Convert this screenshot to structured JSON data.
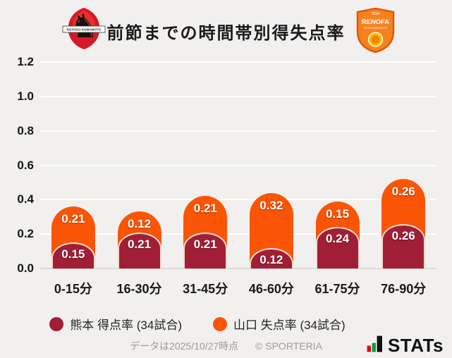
{
  "header": {
    "title": "前節までの時間帯別得失点率",
    "left_logo": {
      "club": "Roasso Kumamoto",
      "banner": "ROASSO KUMAMOTO"
    },
    "right_logo": {
      "club": "Renofa Yamaguchi",
      "year": "2014",
      "line1": "RENOFA",
      "line2": "YAMAGUCHI FC"
    }
  },
  "chart_data": {
    "type": "bar",
    "stacked": true,
    "categories": [
      "0-15分",
      "16-30分",
      "31-45分",
      "46-60分",
      "61-75分",
      "76-90分"
    ],
    "series": [
      {
        "name": "熊本 得点率 (34試合)",
        "color": "#a01f36",
        "values": [
          0.15,
          0.21,
          0.21,
          0.12,
          0.24,
          0.26
        ]
      },
      {
        "name": "山口 失点率 (34試合)",
        "color": "#fa5506",
        "values": [
          0.21,
          0.12,
          0.21,
          0.32,
          0.15,
          0.26
        ]
      }
    ],
    "title": "前節までの時間帯別得失点率",
    "xlabel": "",
    "ylabel": "",
    "ylim": [
      0,
      1.2
    ],
    "yticks": [
      0,
      0.2,
      0.4,
      0.6,
      0.8,
      1.0,
      1.2
    ],
    "grid": true,
    "legend_position": "bottom",
    "colors": {
      "background": "#f1f0ee",
      "gridline": "#ffffff",
      "axis_line": "#dbdad6",
      "value_text": "#ffffff"
    }
  },
  "footer": {
    "note": "データは2025/10/27時点",
    "copyright": "© SPORTERIA",
    "brand": "STATs"
  }
}
